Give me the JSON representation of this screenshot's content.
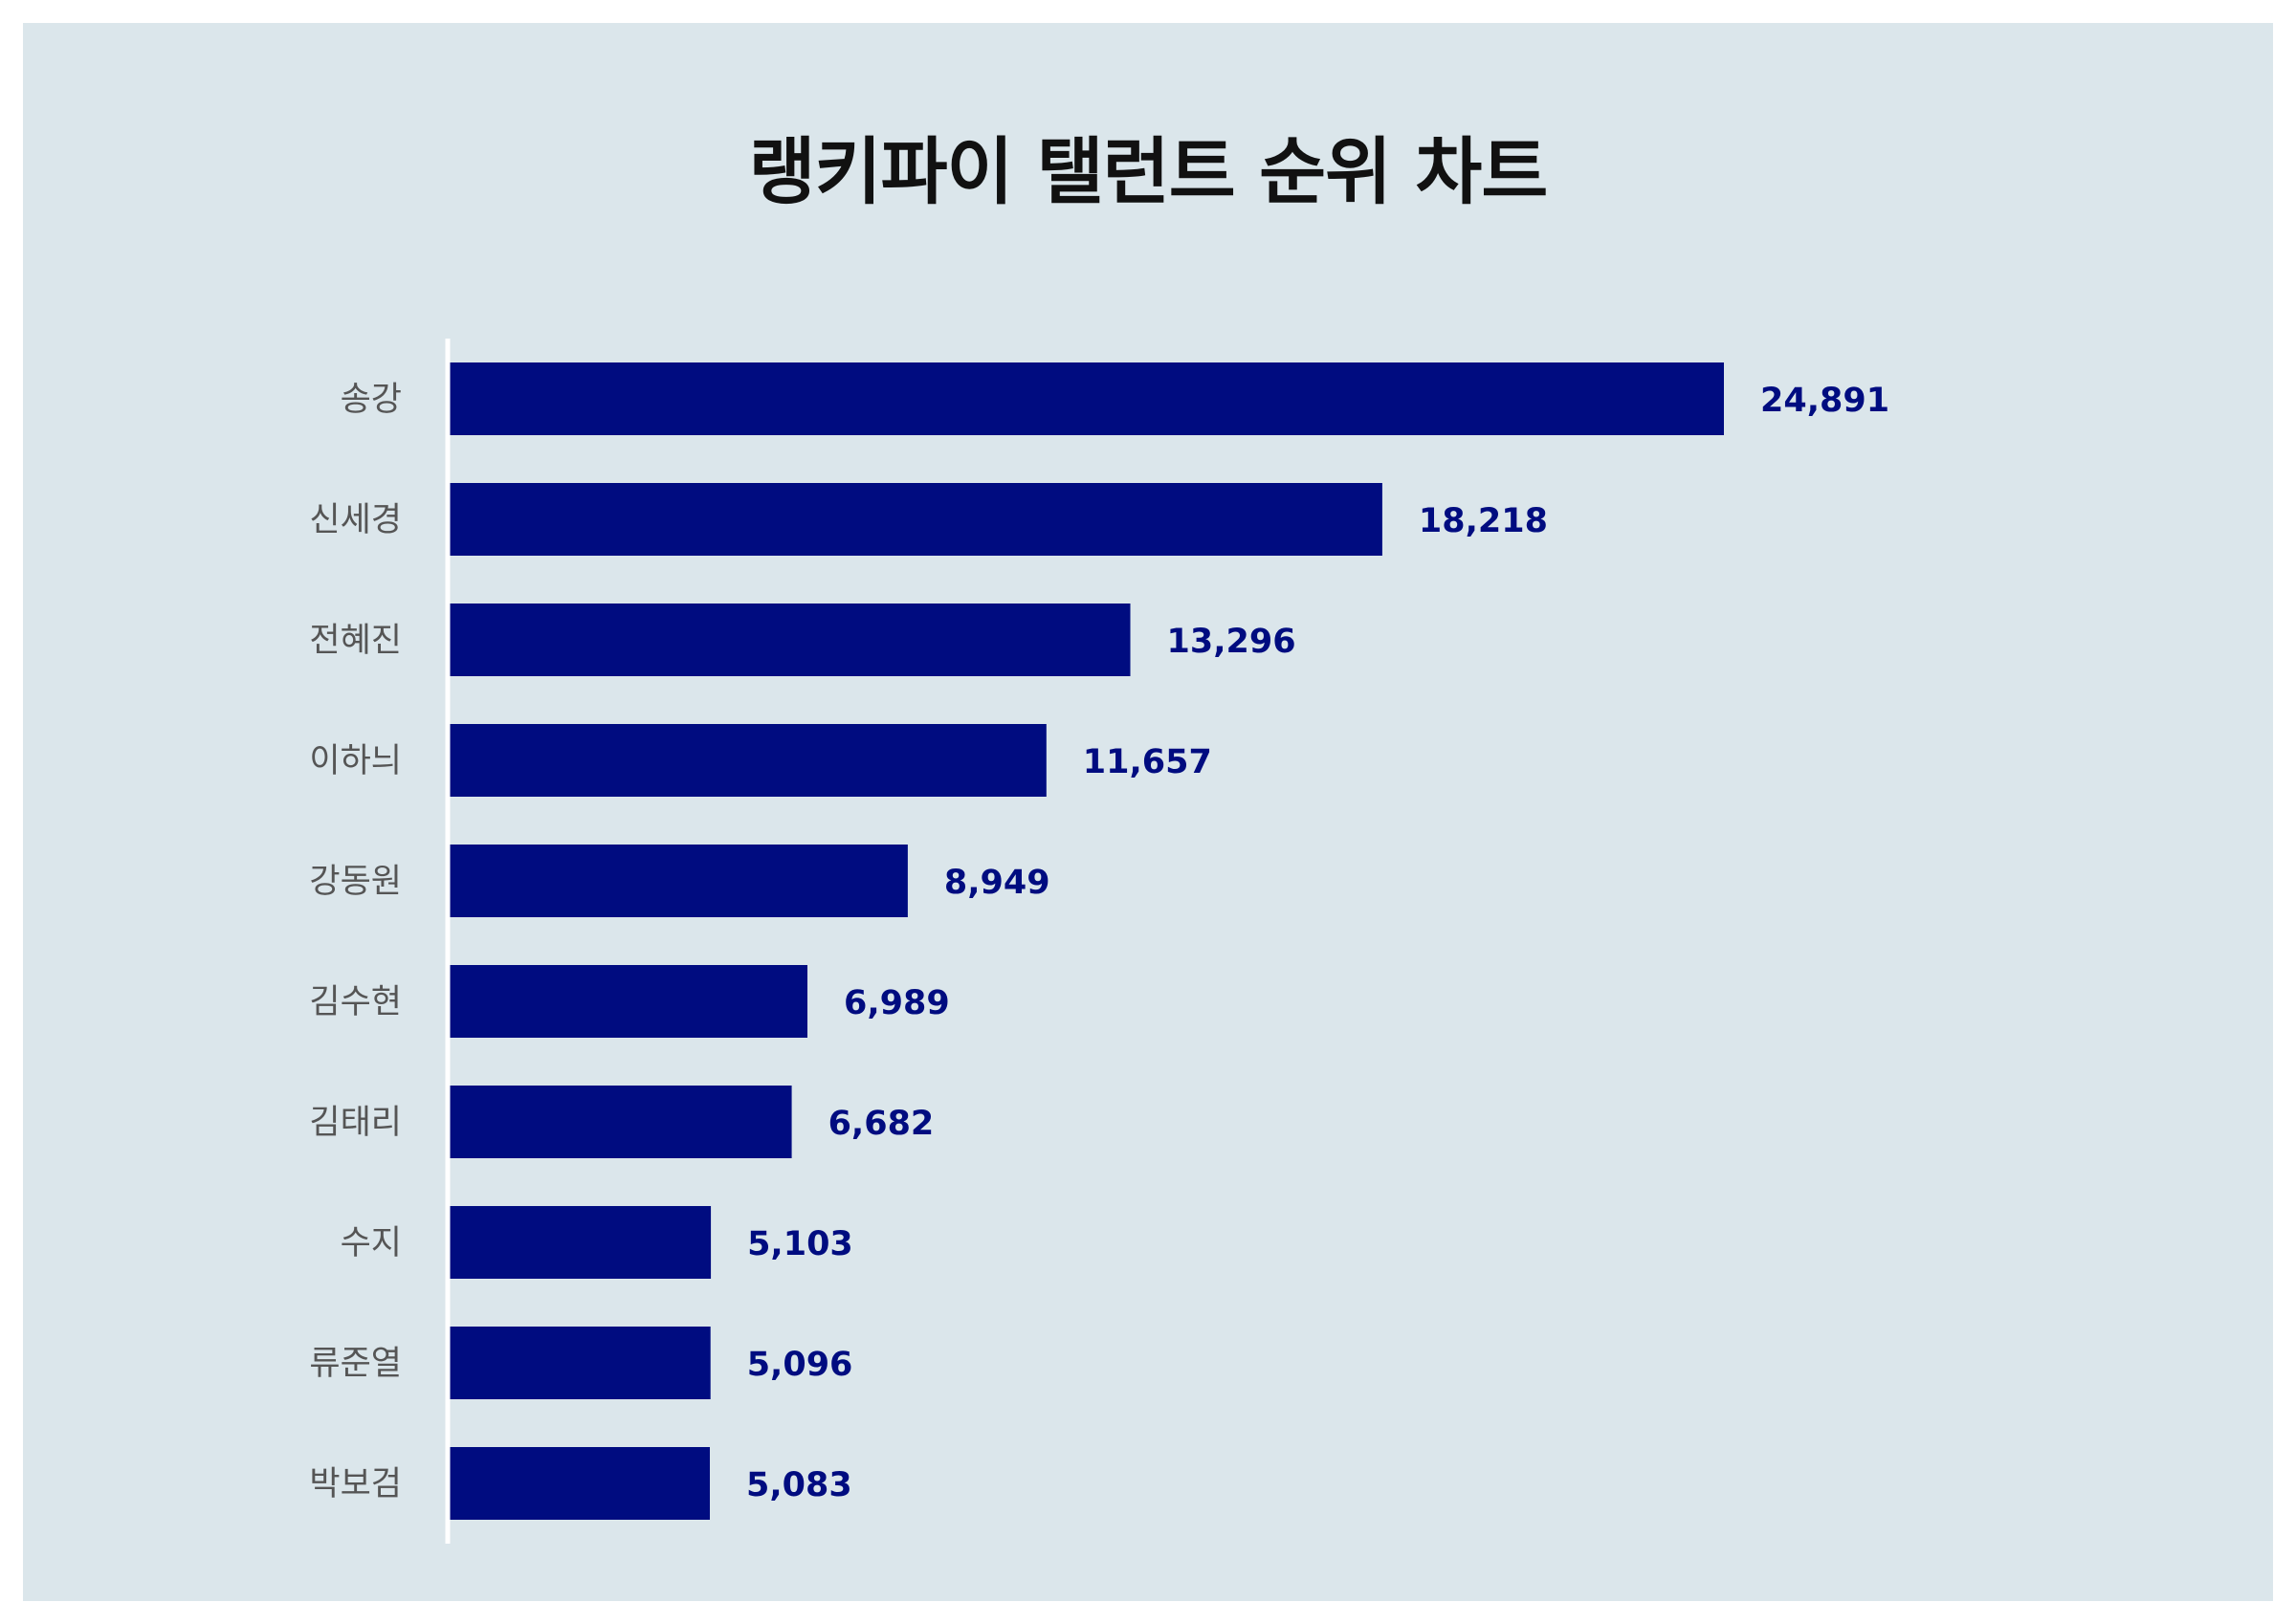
{
  "chart_data": {
    "type": "bar",
    "orientation": "horizontal",
    "title": "랭키파이 탤런트 순위 차트",
    "xlabel": "",
    "ylabel": "",
    "categories": [
      "송강",
      "신세경",
      "전혜진",
      "이하늬",
      "강동원",
      "김수현",
      "김태리",
      "수지",
      "류준열",
      "박보검"
    ],
    "values": [
      24891,
      18218,
      13296,
      11657,
      8949,
      6989,
      6682,
      5103,
      5096,
      5083
    ],
    "value_labels": [
      "24,891",
      "18,218",
      "13,296",
      "11,657",
      "8,949",
      "6,989",
      "6,682",
      "5,103",
      "5,096",
      "5,083"
    ],
    "xlim": [
      0,
      30000
    ],
    "grid": false,
    "legend": "none",
    "colors": {
      "bar": "#000c80",
      "value_label": "#000c80",
      "category_label": "#555555",
      "background": "#dbe6eb",
      "axis_line": "#ffffff"
    }
  }
}
